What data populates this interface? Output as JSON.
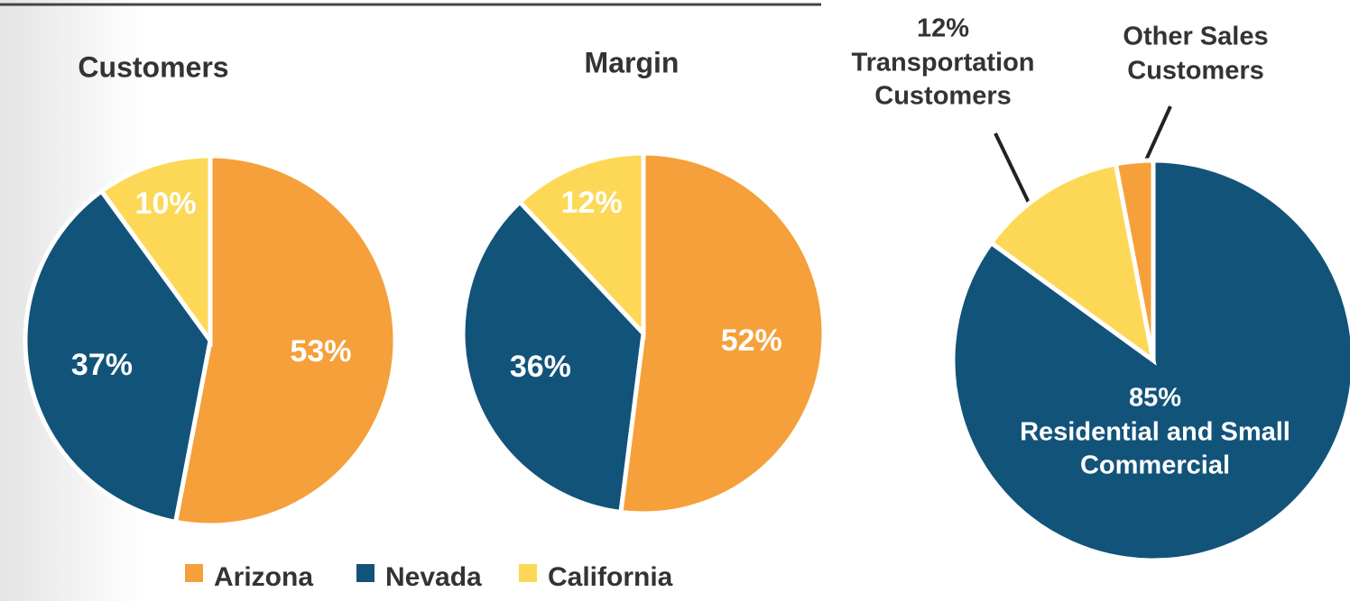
{
  "chart_data": [
    {
      "type": "pie",
      "title": "Customers",
      "categories": [
        "Arizona",
        "Nevada",
        "California"
      ],
      "values": [
        53,
        37,
        10
      ],
      "value_labels": [
        "53%",
        "37%",
        "10%"
      ],
      "colors": [
        "#f5a03a",
        "#12537a",
        "#fdd856"
      ],
      "legend": "bottom"
    },
    {
      "type": "pie",
      "title": "Margin",
      "categories": [
        "Arizona",
        "Nevada",
        "California"
      ],
      "values": [
        52,
        36,
        12
      ],
      "value_labels": [
        "52%",
        "36%",
        "12%"
      ],
      "colors": [
        "#f5a03a",
        "#12537a",
        "#fdd856"
      ]
    },
    {
      "type": "pie",
      "categories": [
        "Residential and Small Commercial",
        "Transportation Customers",
        "Other Sales Customers"
      ],
      "values": [
        85,
        12,
        3
      ],
      "value_labels": [
        "85%",
        "12%",
        null
      ],
      "colors": [
        "#12537a",
        "#fdd856",
        "#f5a03a"
      ]
    }
  ]
}
